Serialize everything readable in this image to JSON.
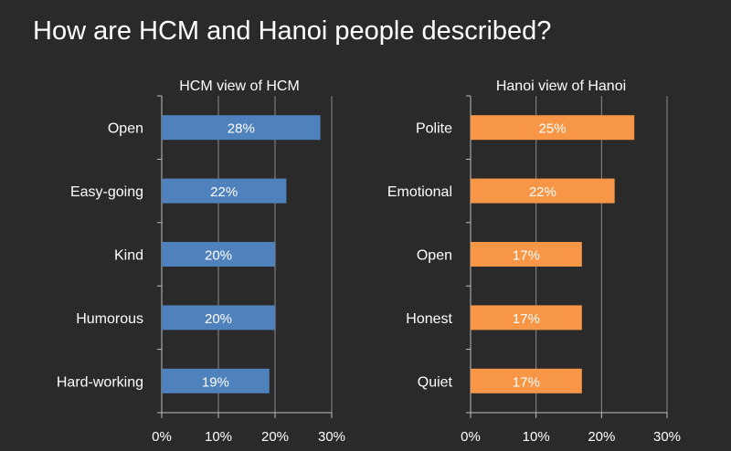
{
  "title": "How are HCM and Hanoi people described?",
  "chart_data": [
    {
      "type": "bar",
      "orientation": "horizontal",
      "title": "HCM view of HCM",
      "categories": [
        "Open",
        "Easy-going",
        "Kind",
        "Humorous",
        "Hard-working"
      ],
      "values": [
        28,
        22,
        20,
        20,
        19
      ],
      "data_labels": [
        "28%",
        "22%",
        "20%",
        "20%",
        "19%"
      ],
      "xlim": [
        0,
        30
      ],
      "ticks": [
        0,
        10,
        20,
        30
      ],
      "tick_labels": [
        "0%",
        "10%",
        "20%",
        "30%"
      ],
      "grid": true,
      "color": "#4f81bd"
    },
    {
      "type": "bar",
      "orientation": "horizontal",
      "title": "Hanoi view of Hanoi",
      "categories": [
        "Polite",
        "Emotional",
        "Open",
        "Honest",
        "Quiet"
      ],
      "values": [
        25,
        22,
        17,
        17,
        17
      ],
      "data_labels": [
        "25%",
        "22%",
        "17%",
        "17%",
        "17%"
      ],
      "xlim": [
        0,
        30
      ],
      "ticks": [
        0,
        10,
        20,
        30
      ],
      "tick_labels": [
        "0%",
        "10%",
        "20%",
        "30%"
      ],
      "grid": true,
      "color": "#f79646"
    }
  ]
}
